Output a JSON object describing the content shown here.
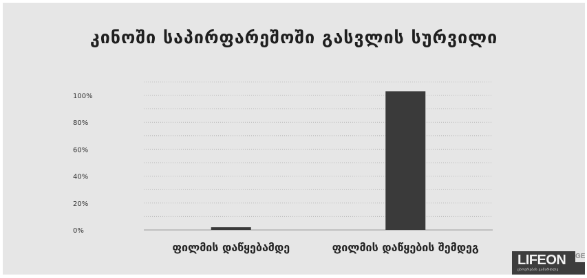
{
  "chart_data": {
    "type": "bar",
    "title": "კინოში საპირფარეშოში გასვლის სურვილი",
    "categories": [
      "ფილმის დაწყებამდე",
      "ფილმის დაწყების შემდეგ"
    ],
    "values": [
      2,
      103
    ],
    "y_ticks": [
      "0%",
      "20%",
      "40%",
      "60%",
      "80%",
      "100%"
    ],
    "ylim": [
      0,
      100
    ],
    "grid": true,
    "bar_color": "#3a3a3a"
  },
  "logo": {
    "main": "LIFEON",
    "suffix": "GE",
    "tagline": "ცხოვრებას გამართლე"
  }
}
